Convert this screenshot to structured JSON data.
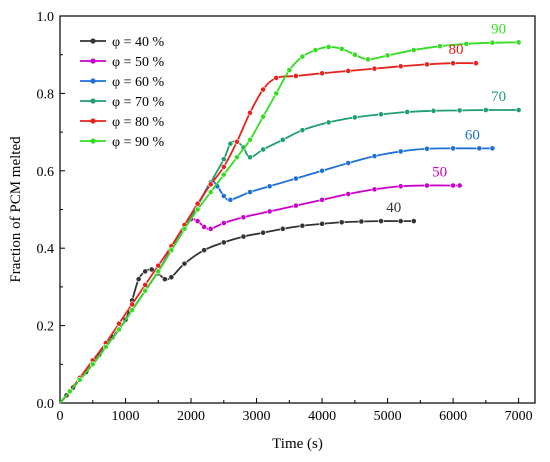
{
  "chart_data": {
    "type": "line",
    "xlabel": "Time (s)",
    "ylabel": "Fraction of PCM melted",
    "xlim": [
      0,
      7250
    ],
    "ylim": [
      0,
      1.0
    ],
    "xticks": [
      0,
      1000,
      2000,
      3000,
      4000,
      5000,
      6000,
      7000
    ],
    "yticks": [
      0.0,
      0.2,
      0.4,
      0.6,
      0.8,
      1.0
    ],
    "xtick_labels": [
      "0",
      "1000",
      "2000",
      "3000",
      "4000",
      "5000",
      "6000",
      "7000"
    ],
    "ytick_labels": [
      "0.0",
      "0.2",
      "0.4",
      "0.6",
      "0.8",
      "1.0"
    ],
    "legend_position": "top-left",
    "grid": false,
    "series": [
      {
        "name": "φ = 40 %",
        "label": "40",
        "color": "#333333",
        "x": [
          0,
          100,
          200,
          300,
          400,
          600,
          800,
          1000,
          1100,
          1200,
          1300,
          1400,
          1500,
          1600,
          1700,
          1900,
          2200,
          2500,
          2800,
          3100,
          3400,
          3700,
          4000,
          4300,
          4600,
          4900,
          5200,
          5400
        ],
        "y": [
          0.0,
          0.02,
          0.04,
          0.06,
          0.08,
          0.125,
          0.17,
          0.215,
          0.265,
          0.32,
          0.34,
          0.345,
          0.335,
          0.32,
          0.325,
          0.36,
          0.395,
          0.415,
          0.43,
          0.44,
          0.45,
          0.458,
          0.463,
          0.467,
          0.469,
          0.47,
          0.47,
          0.47
        ]
      },
      {
        "name": "φ = 50 %",
        "label": "50",
        "color": "#cc00cc",
        "x": [
          0,
          150,
          300,
          500,
          700,
          900,
          1100,
          1300,
          1500,
          1700,
          1900,
          2000,
          2100,
          2200,
          2300,
          2500,
          2800,
          3200,
          3600,
          4000,
          4400,
          4800,
          5200,
          5600,
          6000,
          6100
        ],
        "y": [
          0.0,
          0.03,
          0.06,
          0.1,
          0.145,
          0.19,
          0.24,
          0.29,
          0.34,
          0.4,
          0.455,
          0.475,
          0.47,
          0.455,
          0.45,
          0.465,
          0.48,
          0.495,
          0.51,
          0.525,
          0.54,
          0.552,
          0.56,
          0.562,
          0.562,
          0.562
        ]
      },
      {
        "name": "φ = 60 %",
        "label": "60",
        "color": "#1e6fd8",
        "x": [
          0,
          150,
          300,
          500,
          700,
          900,
          1100,
          1300,
          1500,
          1700,
          1900,
          2100,
          2300,
          2400,
          2500,
          2600,
          2900,
          3200,
          3600,
          4000,
          4400,
          4800,
          5200,
          5600,
          6000,
          6400,
          6600
        ],
        "y": [
          0.0,
          0.03,
          0.06,
          0.1,
          0.145,
          0.19,
          0.24,
          0.29,
          0.34,
          0.395,
          0.45,
          0.51,
          0.57,
          0.56,
          0.535,
          0.525,
          0.545,
          0.56,
          0.58,
          0.6,
          0.62,
          0.638,
          0.65,
          0.657,
          0.658,
          0.658,
          0.658
        ]
      },
      {
        "name": "φ = 70 %",
        "label": "70",
        "color": "#1f9e6e",
        "x": [
          0,
          150,
          300,
          500,
          700,
          900,
          1100,
          1300,
          1500,
          1700,
          1900,
          2100,
          2300,
          2500,
          2600,
          2700,
          2800,
          2900,
          3100,
          3400,
          3700,
          4100,
          4500,
          4900,
          5300,
          5700,
          6100,
          6500,
          7000
        ],
        "y": [
          0.0,
          0.03,
          0.06,
          0.1,
          0.145,
          0.19,
          0.24,
          0.29,
          0.34,
          0.395,
          0.45,
          0.51,
          0.57,
          0.63,
          0.67,
          0.675,
          0.66,
          0.635,
          0.655,
          0.68,
          0.705,
          0.725,
          0.738,
          0.746,
          0.752,
          0.755,
          0.756,
          0.757,
          0.757
        ]
      },
      {
        "name": "φ = 80 %",
        "label": "80",
        "color": "#e8221c",
        "x": [
          0,
          150,
          300,
          500,
          700,
          900,
          1100,
          1300,
          1500,
          1700,
          1900,
          2100,
          2300,
          2500,
          2700,
          2900,
          3100,
          3300,
          3600,
          4000,
          4400,
          4800,
          5200,
          5600,
          6000,
          6350
        ],
        "y": [
          0.0,
          0.03,
          0.065,
          0.11,
          0.155,
          0.205,
          0.255,
          0.305,
          0.355,
          0.405,
          0.46,
          0.515,
          0.565,
          0.61,
          0.675,
          0.75,
          0.81,
          0.84,
          0.845,
          0.852,
          0.858,
          0.864,
          0.87,
          0.875,
          0.878,
          0.878
        ]
      },
      {
        "name": "φ = 90 %",
        "label": "90",
        "color": "#33dd22",
        "x": [
          0,
          150,
          300,
          500,
          700,
          900,
          1100,
          1300,
          1500,
          1700,
          1900,
          2100,
          2300,
          2500,
          2700,
          2900,
          3100,
          3300,
          3500,
          3700,
          3900,
          4100,
          4300,
          4500,
          4700,
          5000,
          5400,
          5800,
          6200,
          6600,
          7000
        ],
        "y": [
          0.0,
          0.03,
          0.06,
          0.1,
          0.145,
          0.19,
          0.24,
          0.29,
          0.34,
          0.395,
          0.45,
          0.5,
          0.545,
          0.59,
          0.635,
          0.68,
          0.74,
          0.8,
          0.86,
          0.895,
          0.912,
          0.92,
          0.915,
          0.9,
          0.888,
          0.898,
          0.912,
          0.922,
          0.928,
          0.931,
          0.932
        ]
      }
    ]
  }
}
